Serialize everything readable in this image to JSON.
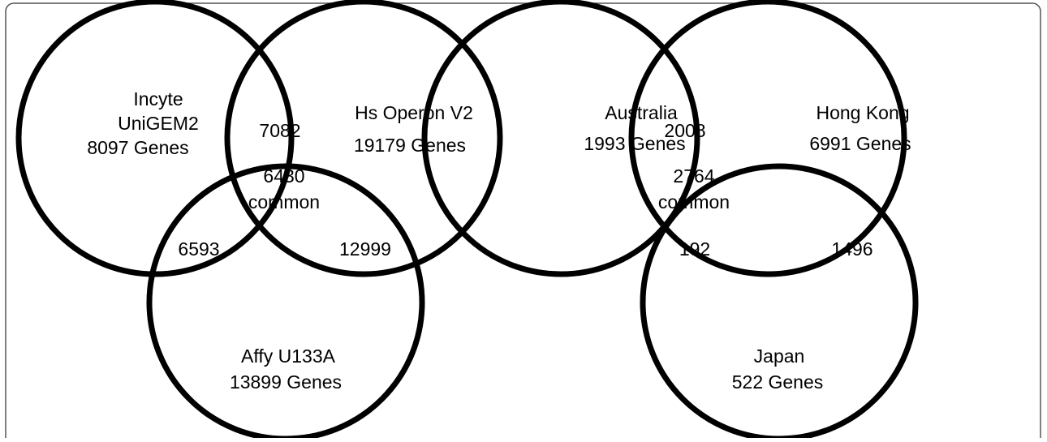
{
  "venns": [
    {
      "sets": [
        {
          "lines": [
            "Incyte",
            "UniGEM2",
            "8097 Genes"
          ]
        },
        {
          "lines": [
            "Hs Operon V2",
            "19179 Genes"
          ]
        },
        {
          "lines": [
            "Affy U133A",
            "13899 Genes"
          ]
        }
      ],
      "regions": [
        7082,
        6593,
        12999
      ],
      "common": {
        "value": 6430,
        "label": "common"
      }
    },
    {
      "sets": [
        {
          "lines": [
            "Australia",
            "1993 Genes"
          ]
        },
        {
          "lines": [
            "Hong Kong",
            "6991 Genes"
          ]
        },
        {
          "lines": [
            "Japan",
            "522 Genes"
          ]
        }
      ],
      "regions": [
        2008,
        192,
        1496
      ],
      "common": {
        "value": 2764,
        "label": "common"
      }
    }
  ]
}
